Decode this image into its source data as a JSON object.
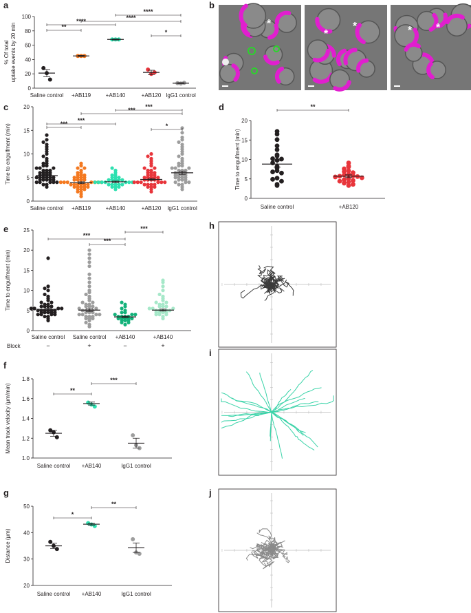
{
  "panel_letters": {
    "a": "a",
    "b": "b",
    "c": "c",
    "d": "d",
    "e": "e",
    "f": "f",
    "g": "g",
    "h": "h",
    "i": "i",
    "j": "j"
  },
  "colors": {
    "black": "#231f20",
    "orange": "#f47920",
    "teal": "#2ee0b0",
    "red": "#e8353b",
    "grey": "#9d9d9d",
    "green": "#13b27a",
    "light_green": "#a6e8c9",
    "magenta": "#e11ecf",
    "fluor_green": "#2bd42b"
  },
  "chart_data": [
    {
      "id": "a",
      "type": "scatter",
      "ylabel": "% Of total uptake events by 20 min",
      "ylim": [
        0,
        100
      ],
      "yticks": [
        0,
        20,
        40,
        60,
        80,
        100
      ],
      "categories": [
        "Saline control",
        "+AB119",
        "+AB140",
        "+AB120",
        "IgG1 control"
      ],
      "point_colors": [
        "black",
        "orange",
        "teal",
        "red",
        "grey"
      ],
      "means": [
        21,
        45,
        68,
        22,
        7
      ],
      "sems": [
        5,
        0.8,
        0.8,
        3,
        0.6
      ],
      "points": [
        [
          28,
          21,
          12
        ],
        [
          45,
          45,
          45
        ],
        [
          68,
          68,
          68
        ],
        [
          26,
          20,
          22
        ],
        [
          7,
          6.5,
          7.5
        ]
      ],
      "significance": [
        {
          "from": 0,
          "to": 1,
          "label": "**"
        },
        {
          "from": 0,
          "to": 2,
          "label": "****"
        },
        {
          "from": 1,
          "to": 4,
          "label": "****"
        },
        {
          "from": 2,
          "to": 4,
          "label": "****"
        },
        {
          "from": 3,
          "to": 4,
          "label": "*"
        }
      ]
    },
    {
      "id": "c",
      "type": "scatter",
      "ylabel": "Time to engulfment (min)",
      "ylim": [
        0,
        20
      ],
      "yticks": [
        0,
        5,
        10,
        15,
        20
      ],
      "categories": [
        "Saline control",
        "+AB119",
        "+AB140",
        "+AB120",
        "IgG1 control"
      ],
      "point_colors": [
        "black",
        "orange",
        "teal",
        "red",
        "grey"
      ],
      "means": [
        5.4,
        3.9,
        4.1,
        4.6,
        6.0
      ],
      "sems": [
        0.3,
        0.2,
        0.15,
        0.2,
        0.35
      ],
      "points": [
        [
          3,
          3.5,
          3.5,
          4,
          4,
          4,
          4,
          4,
          4.5,
          4.5,
          4.5,
          4.5,
          4.5,
          5,
          5,
          5,
          5,
          5,
          5,
          5.5,
          5.5,
          5.5,
          5.5,
          6,
          6,
          6,
          6,
          6.5,
          6.5,
          6.5,
          7,
          7,
          7,
          7.5,
          7.5,
          8,
          8,
          8.5,
          9,
          9.5,
          10,
          10.5,
          11,
          11.5,
          12,
          12.5,
          13,
          14
        ],
        [
          1,
          1.5,
          2,
          2,
          2.5,
          2.5,
          2.5,
          3,
          3,
          3,
          3,
          3,
          3.5,
          3.5,
          3.5,
          3.5,
          3.5,
          3.5,
          4,
          4,
          4,
          4,
          4,
          4,
          4,
          4.5,
          4.5,
          4.5,
          4.5,
          5,
          5,
          5,
          5,
          5.5,
          5.5,
          5.5,
          6,
          6,
          6.5,
          7,
          7,
          7.5,
          8
        ],
        [
          2.5,
          3,
          3,
          3,
          3.5,
          3.5,
          3.5,
          3.5,
          3.5,
          4,
          4,
          4,
          4,
          4,
          4,
          4,
          4.5,
          4.5,
          4.5,
          4.5,
          4.5,
          5,
          5,
          5,
          5.5,
          5.5,
          6,
          6.5,
          7
        ],
        [
          2,
          2.5,
          3,
          3,
          3,
          3.5,
          3.5,
          3.5,
          3.5,
          4,
          4,
          4,
          4,
          4,
          4,
          4.5,
          4.5,
          4.5,
          4.5,
          4.5,
          5,
          5,
          5,
          5,
          5,
          5.5,
          5.5,
          5.5,
          6,
          6,
          6,
          6.5,
          6.5,
          7,
          7,
          7.5,
          8,
          8.5,
          9,
          9.5,
          10
        ],
        [
          2.5,
          3,
          3.5,
          3.5,
          4,
          4,
          4,
          4.5,
          4.5,
          4.5,
          5,
          5,
          5,
          5,
          5.5,
          5.5,
          5.5,
          5.5,
          6,
          6,
          6,
          6,
          6.5,
          6.5,
          6.5,
          7,
          7,
          7,
          7.5,
          7.5,
          8,
          8,
          8.5,
          9,
          9.5,
          10,
          10.5,
          11,
          11.5,
          12,
          12.5,
          13,
          13.5,
          14.5,
          15.5
        ]
      ],
      "significance": [
        {
          "from": 0,
          "to": 1,
          "label": "***"
        },
        {
          "from": 0,
          "to": 2,
          "label": "***"
        },
        {
          "from": 1,
          "to": 4,
          "label": "***"
        },
        {
          "from": 2,
          "to": 4,
          "label": "***"
        },
        {
          "from": 3,
          "to": 4,
          "label": "*"
        }
      ]
    },
    {
      "id": "d",
      "type": "scatter",
      "ylabel": "Time to engulfment (min)",
      "ylim": [
        0,
        20
      ],
      "yticks": [
        0,
        5,
        10,
        15,
        20
      ],
      "categories": [
        "Saline control",
        "+AB120"
      ],
      "point_colors": [
        "black",
        "red"
      ],
      "means": [
        8.8,
        5.7
      ],
      "sems": [
        0.8,
        0.35
      ],
      "points": [
        [
          17.2,
          16.5,
          15.1,
          13.5,
          12.5,
          11.2,
          10.9,
          10.2,
          10.1,
          9.8,
          9.1,
          8.2,
          7.8,
          7.1,
          6.8,
          6.5,
          5.2,
          4.9,
          4.4,
          3.6,
          3.3
        ],
        [
          9.1,
          8.3,
          8.1,
          7.6,
          7.1,
          6.9,
          6.6,
          6.2,
          6.0,
          5.8,
          5.7,
          5.6,
          5.5,
          5.3,
          5.1,
          4.8,
          4.6,
          4.4,
          4.2,
          3.9,
          3.6,
          3.3
        ]
      ],
      "significance": [
        {
          "from": 0,
          "to": 1,
          "label": "**"
        }
      ]
    },
    {
      "id": "e",
      "type": "scatter",
      "ylabel": "Time to engulfment (min)",
      "ylim": [
        0,
        25
      ],
      "yticks": [
        0,
        5,
        10,
        15,
        20,
        25
      ],
      "categories": [
        "Saline control",
        "Saline control",
        "+AB140",
        "+AB140"
      ],
      "block_label": "Block",
      "block_values": [
        "−",
        "+",
        "−",
        "+"
      ],
      "point_colors": [
        "black",
        "grey",
        "green",
        "light_green"
      ],
      "means": [
        5.3,
        5.1,
        3.4,
        5.1
      ],
      "sems": [
        0.25,
        0.35,
        0.2,
        0.25
      ],
      "points": [
        [
          2.5,
          3,
          3.5,
          3.5,
          4,
          4,
          4,
          4,
          4.5,
          4.5,
          4.5,
          4.5,
          4.5,
          5,
          5,
          5,
          5,
          5,
          5,
          5.5,
          5.5,
          5.5,
          5.5,
          6,
          6,
          6,
          6,
          6.5,
          6.5,
          7,
          7,
          7.5,
          8,
          8.5,
          9,
          10,
          10.5,
          11,
          18
        ],
        [
          1,
          1.5,
          2,
          2.5,
          3,
          3,
          3,
          3.5,
          3.5,
          3.5,
          4,
          4,
          4,
          4,
          4.5,
          4.5,
          4.5,
          5,
          5,
          5,
          5,
          5.5,
          5.5,
          6,
          6,
          6,
          6.5,
          6.5,
          7,
          7,
          7.5,
          8,
          8.5,
          9,
          9.5,
          10,
          11,
          12,
          13,
          14,
          16,
          17,
          18,
          19,
          20
        ],
        [
          1.5,
          2,
          2,
          2.5,
          2.5,
          2.5,
          3,
          3,
          3,
          3,
          3,
          3.5,
          3.5,
          3.5,
          3.5,
          4,
          4,
          4,
          4.5,
          4.5,
          5,
          5.5,
          6,
          6.5,
          7
        ],
        [
          3,
          3.5,
          4,
          4,
          4,
          4.5,
          4.5,
          4.5,
          4.5,
          5,
          5,
          5,
          5,
          5,
          5.5,
          5.5,
          5.5,
          6,
          6,
          6,
          6.5,
          6.5,
          7,
          7,
          7.5,
          8,
          8.5,
          9,
          10,
          11,
          12,
          12.5
        ]
      ],
      "significance": [
        {
          "from": 0,
          "to": 2,
          "label": "***"
        },
        {
          "from": 1,
          "to": 2,
          "label": "***"
        },
        {
          "from": 2,
          "to": 3,
          "label": "***"
        }
      ]
    },
    {
      "id": "f",
      "type": "scatter",
      "ylabel": "Mean track velocity (μm/min)",
      "ylim": [
        1.0,
        1.8
      ],
      "yticks": [
        1.0,
        1.2,
        1.4,
        1.6,
        1.8
      ],
      "categories": [
        "Saline control",
        "+AB140",
        "IgG1 control"
      ],
      "point_colors": [
        "black",
        "teal",
        "grey"
      ],
      "means": [
        1.25,
        1.55,
        1.15
      ],
      "sems": [
        0.03,
        0.015,
        0.05
      ],
      "points": [
        [
          1.28,
          1.26,
          1.21
        ],
        [
          1.56,
          1.54,
          1.52
        ],
        [
          1.23,
          1.13,
          1.1
        ]
      ],
      "significance": [
        {
          "from": 0,
          "to": 1,
          "label": "**"
        },
        {
          "from": 1,
          "to": 2,
          "label": "***"
        }
      ]
    },
    {
      "id": "g",
      "type": "scatter",
      "ylabel": "Distance (μm)",
      "ylim": [
        20,
        50
      ],
      "yticks": [
        20,
        30,
        40,
        50
      ],
      "categories": [
        "Saline control",
        "+AB140",
        "IgG1 control"
      ],
      "point_colors": [
        "black",
        "teal",
        "grey"
      ],
      "means": [
        35,
        43.2,
        34.3
      ],
      "sems": [
        1.0,
        0.4,
        1.8
      ],
      "points": [
        [
          36.5,
          35,
          33.8
        ],
        [
          43.6,
          43.1,
          42.5
        ],
        [
          37.5,
          32.5,
          32.0
        ]
      ],
      "significance": [
        {
          "from": 0,
          "to": 1,
          "label": "*"
        },
        {
          "from": 1,
          "to": 2,
          "label": "**"
        }
      ]
    }
  ],
  "micrographs": {
    "asterisk": "*"
  },
  "tracks": {
    "h": "#3a3a3a",
    "i": "#39d3a8",
    "j": "#8a8a8a"
  }
}
